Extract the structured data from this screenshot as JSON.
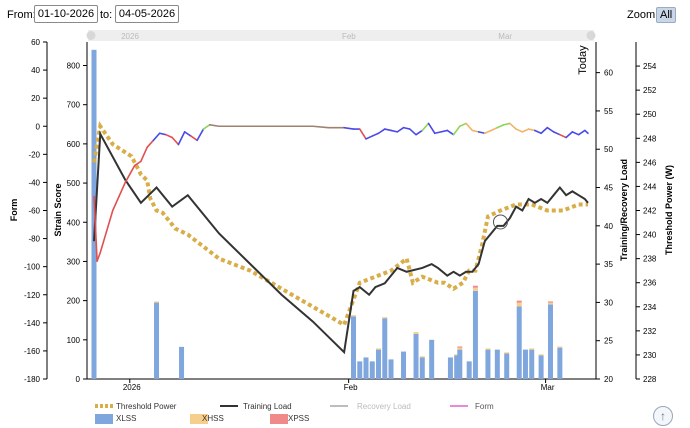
{
  "toolbar": {
    "from_label": "From:",
    "from_value": "01-10-2026",
    "to_label": "to:",
    "to_value": "04-05-2026",
    "zoom_label": "Zoom:",
    "zoom_value": "All"
  },
  "help": {
    "icon": "up-arrow-circle-icon",
    "glyph": "↑"
  },
  "chart_data": {
    "type": "mixed",
    "x_labels": [
      "2026",
      "Feb",
      "Mar"
    ],
    "navigator_labels": [
      "2026",
      "Feb",
      "Mar"
    ],
    "today_label": "Today",
    "axes": {
      "form": {
        "label": "Form",
        "range": [
          -180,
          60
        ],
        "ticks": [
          60,
          40,
          20,
          0,
          -20,
          -40,
          -60,
          -80,
          -100,
          -120,
          -140,
          -160,
          -180
        ]
      },
      "strain": {
        "label": "Strain Score",
        "range": [
          0,
          860
        ],
        "ticks": [
          0,
          100,
          200,
          300,
          400,
          500,
          600,
          700,
          800
        ]
      },
      "load": {
        "label": "Training/Recovery Load",
        "range": [
          20,
          64
        ],
        "ticks": [
          20,
          25,
          30,
          35,
          40,
          45,
          50,
          55,
          60
        ]
      },
      "power": {
        "label": "Threshold Power (W)",
        "range": [
          228,
          256
        ],
        "ticks": [
          228,
          230,
          232,
          234,
          236,
          238,
          240,
          242,
          244,
          246,
          248,
          250,
          252,
          254
        ]
      }
    },
    "legend": [
      {
        "name": "Threshold Power",
        "color": "#d9ad48",
        "style": "dotted"
      },
      {
        "name": "Training Load",
        "color": "#333333",
        "style": "line"
      },
      {
        "name": "Recovery Load",
        "color": "#bdbdbd",
        "style": "line"
      },
      {
        "name": "Form",
        "color": "#e88ad6",
        "style": "line"
      },
      {
        "name": "XLSS",
        "color": "#7fa7de",
        "style": "box"
      },
      {
        "name": "XHSS",
        "color": "#f6cf8c",
        "style": "box"
      },
      {
        "name": "XPSS",
        "color": "#f08a8a",
        "style": "box"
      }
    ],
    "colors": {
      "form_low": "#e05050",
      "form_tan": "#a08070",
      "form_blue": "#4a4ae8",
      "form_green": "#8dd65a",
      "form_orange": "#f2b36a"
    },
    "series": {
      "strain_bars": {
        "day": [
          0,
          20,
          28,
          83,
          85,
          87,
          89,
          91,
          93,
          95,
          99,
          103,
          105,
          108,
          114,
          116,
          117,
          120,
          122,
          126,
          129,
          132,
          136,
          138,
          140,
          143,
          146,
          149
        ],
        "value": [
          840,
          195,
          82,
          160,
          45,
          55,
          45,
          75,
          155,
          50,
          70,
          115,
          55,
          100,
          55,
          60,
          75,
          45,
          225,
          75,
          75,
          65,
          185,
          75,
          75,
          60,
          190,
          80
        ],
        "xhss": [
          0,
          3,
          0,
          3,
          0,
          0,
          0,
          3,
          3,
          0,
          0,
          5,
          3,
          0,
          0,
          3,
          5,
          0,
          8,
          3,
          0,
          3,
          10,
          0,
          3,
          3,
          5,
          3
        ],
        "xpss": [
          0,
          0,
          0,
          0,
          0,
          0,
          0,
          0,
          0,
          0,
          0,
          0,
          0,
          0,
          0,
          0,
          3,
          0,
          5,
          0,
          0,
          0,
          5,
          0,
          0,
          0,
          3,
          0
        ]
      },
      "training_load": {
        "x": [
          0,
          2,
          10,
          15,
          20,
          25,
          30,
          35,
          40,
          50,
          60,
          70,
          80,
          83,
          85,
          88,
          90,
          93,
          95,
          97,
          100,
          105,
          108,
          110,
          113,
          115,
          117,
          119,
          121,
          123,
          125,
          127,
          129,
          131,
          133,
          135,
          137,
          139,
          141,
          143,
          145,
          147,
          149,
          151,
          153,
          155,
          157,
          158
        ],
        "y": [
          38,
          52,
          46,
          43,
          45,
          42.5,
          44,
          41.5,
          39,
          35,
          31,
          27.5,
          23.5,
          31.5,
          32,
          31,
          32,
          32.5,
          33.5,
          34.5,
          34,
          34.5,
          35,
          34.5,
          33.5,
          34,
          33.5,
          34,
          34,
          35,
          38,
          39,
          40,
          40,
          41,
          42.5,
          42,
          43.5,
          43,
          43.5,
          43,
          44,
          45,
          44,
          44.5,
          44,
          43.5,
          43
        ],
        "unit": "load"
      },
      "threshold_power": {
        "x": [
          0,
          2,
          6,
          12,
          15,
          17,
          18,
          20,
          22,
          26,
          30,
          35,
          40,
          50,
          60,
          70,
          80,
          85,
          90,
          95,
          100,
          102,
          105,
          110,
          112,
          115,
          118,
          120,
          122,
          124,
          126,
          130,
          135,
          140,
          145,
          150,
          155,
          158
        ],
        "y": [
          246,
          249,
          247.5,
          246.5,
          245,
          244.5,
          243,
          242,
          241.8,
          240.5,
          240,
          239,
          238,
          237,
          235.5,
          234,
          232.5,
          236,
          236.5,
          237,
          238,
          236,
          236.5,
          236,
          236,
          235.5,
          236,
          237,
          237,
          239,
          241.5,
          242,
          242.5,
          242.5,
          242,
          242,
          242.5,
          242.5
        ],
        "unit": "watts"
      },
      "form": {
        "x": [
          0,
          1,
          2,
          4,
          6,
          8,
          10,
          13,
          15,
          17,
          19,
          21,
          23,
          25,
          27,
          29,
          31,
          33,
          35,
          37,
          40,
          45,
          50,
          55,
          60,
          65,
          70,
          75,
          80,
          83,
          85,
          87,
          89,
          91,
          93,
          95,
          97,
          99,
          101,
          103,
          105,
          107,
          109,
          111,
          113,
          115,
          117,
          119,
          121,
          123,
          125,
          127,
          129,
          131,
          133,
          135,
          137,
          139,
          141,
          143,
          145,
          147,
          149,
          151,
          153,
          155,
          157,
          158
        ],
        "y": [
          -50,
          -96,
          -90,
          -75,
          -60,
          -50,
          -40,
          -28,
          -25,
          -15,
          -10,
          -5,
          -6,
          -8,
          -13,
          -4,
          -7,
          -10,
          -2,
          1,
          0,
          0,
          0,
          0,
          0,
          0,
          0,
          -1,
          -1,
          -2,
          -2,
          -9,
          -7,
          -5,
          -2,
          -3,
          -4,
          -1,
          -2,
          -6,
          -3,
          2,
          -5,
          -4,
          -3,
          -6,
          0,
          2,
          -3,
          -4,
          -5,
          -3,
          -1,
          1,
          2,
          -2,
          -4,
          -2,
          -3,
          -5,
          -1,
          -4,
          -6,
          -8,
          -4,
          -6,
          -3,
          -5
        ],
        "unit": "form"
      }
    },
    "cursor_marker": {
      "x": 130,
      "load": 40.5
    }
  }
}
